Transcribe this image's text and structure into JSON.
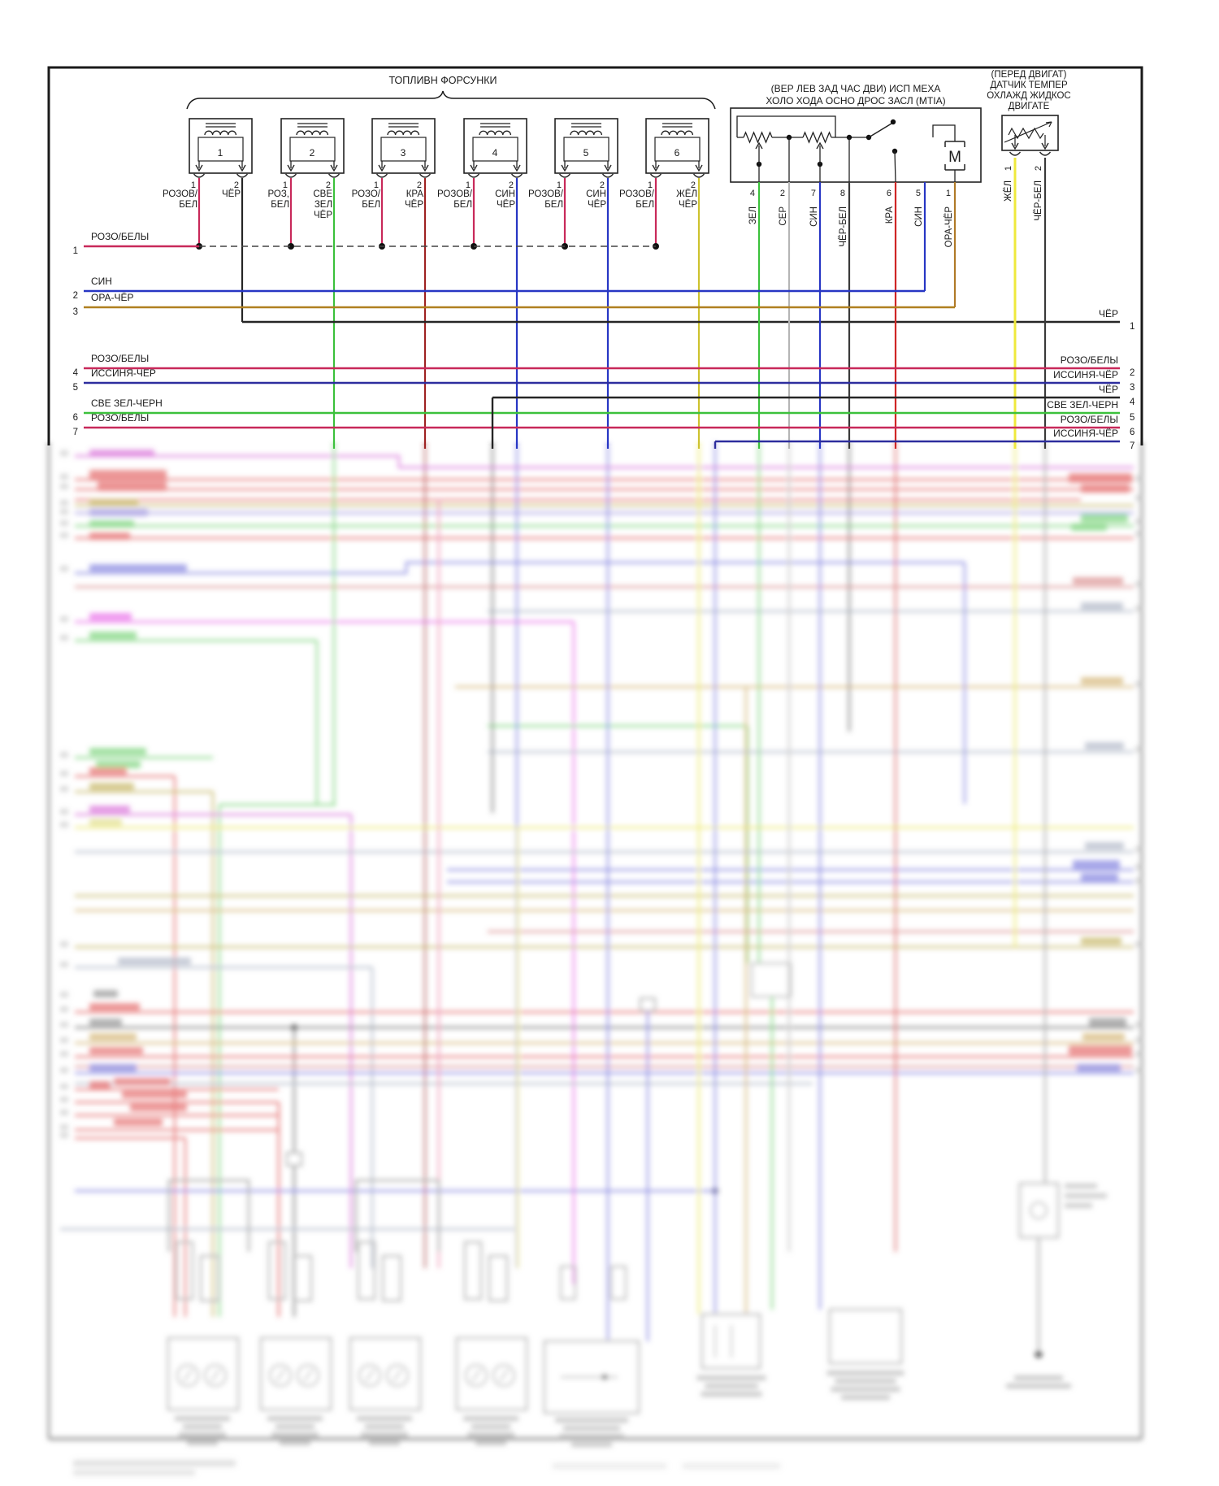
{
  "diagram": {
    "injector_group": {
      "label": "ТОПЛИВН ФОРСУНКИ",
      "injectors": [
        {
          "number": "1",
          "pins": [
            {
              "number": "1",
              "wire_lines": [
                "РОЗОВ/",
                "БЕЛ"
              ],
              "color_key": "pink_white"
            },
            {
              "number": "2",
              "wire_lines": [
                "ЧЁР"
              ],
              "color_key": "black"
            }
          ]
        },
        {
          "number": "2",
          "pins": [
            {
              "number": "1",
              "wire_lines": [
                "РОЗ,",
                "БЕЛ"
              ],
              "color_key": "pink_white"
            },
            {
              "number": "2",
              "wire_lines": [
                "СВЕ",
                "ЗЕЛ",
                "ЧЁР"
              ],
              "color_key": "light_green"
            }
          ]
        },
        {
          "number": "3",
          "pins": [
            {
              "number": "1",
              "wire_lines": [
                "РОЗО/",
                "БЕЛ"
              ],
              "color_key": "pink_white"
            },
            {
              "number": "2",
              "wire_lines": [
                "КРА",
                "ЧЁР"
              ],
              "color_key": "dark_red"
            }
          ]
        },
        {
          "number": "4",
          "pins": [
            {
              "number": "1",
              "wire_lines": [
                "РОЗОВ/",
                "БЕЛ"
              ],
              "color_key": "pink_white"
            },
            {
              "number": "2",
              "wire_lines": [
                "СИН",
                "ЧЁР"
              ],
              "color_key": "blue"
            }
          ]
        },
        {
          "number": "5",
          "pins": [
            {
              "number": "1",
              "wire_lines": [
                "РОЗОВ/",
                "БЕЛ"
              ],
              "color_key": "pink_white"
            },
            {
              "number": "2",
              "wire_lines": [
                "СИН",
                "ЧЁР"
              ],
              "color_key": "blue"
            }
          ]
        },
        {
          "number": "6",
          "pins": [
            {
              "number": "1",
              "wire_lines": [
                "РОЗОВ/",
                "БЕЛ"
              ],
              "color_key": "pink_white"
            },
            {
              "number": "2",
              "wire_lines": [
                "ЖЁЛ",
                "ЧЁР"
              ],
              "color_key": "yellow_olive"
            }
          ]
        }
      ]
    },
    "iac_valve": {
      "title_lines": [
        "(ВЕР ЛЕВ ЗАД ЧАС ДВИ) ИСП МЕХА",
        "ХОЛО ХОДА ОСНО ДРОС ЗАСЛ (MTIA)"
      ],
      "motor_label": "M",
      "pins": [
        {
          "number": "4",
          "wire": "ЗЕЛ",
          "color_key": "green"
        },
        {
          "number": "2",
          "wire": "СЕР",
          "color_key": "gray"
        },
        {
          "number": "7",
          "wire": "СИН",
          "color_key": "blue"
        },
        {
          "number": "8",
          "wire": "ЧЁР-БЕЛ",
          "color_key": "black_white"
        },
        {
          "number": "6",
          "wire": "КРА",
          "color_key": "red"
        },
        {
          "number": "5",
          "wire": "СИН",
          "color_key": "blue"
        },
        {
          "number": "1",
          "wire": "ОРА-ЧЁР",
          "color_key": "orange_black"
        }
      ]
    },
    "coolant_sensor": {
      "title_lines": [
        "(ПЕРЕД ДВИГАТ)",
        "ДАТЧИК ТЕМПЕР",
        "ОХЛАЖД ЖИДКОС",
        "ДВИГАТЕ"
      ],
      "pins": [
        {
          "number": "1",
          "wire": "ЖЁЛ",
          "color_key": "bright_yellow"
        },
        {
          "number": "2",
          "wire": "ЧЁР-БЕЛ",
          "color_key": "black_white"
        }
      ]
    },
    "left_rows": [
      {
        "num": "1",
        "label": "РОЗО/БЕЛЫ",
        "color_key": "pink_white"
      },
      {
        "num": "2",
        "label": "СИН",
        "color_key": "blue"
      },
      {
        "num": "3",
        "label": "ОРА-ЧЁР",
        "color_key": "orange_row"
      },
      {
        "num": "4",
        "label": "РОЗО/БЕЛЫ",
        "color_key": "pink_white"
      },
      {
        "num": "5",
        "label": "ИССИНЯ-ЧЁР",
        "color_key": "dark_blue"
      },
      {
        "num": "6",
        "label": "СВЕ ЗЕЛ-ЧЕРН",
        "color_key": "green"
      },
      {
        "num": "7",
        "label": "РОЗО/БЕЛЫ",
        "color_key": "pink_white"
      }
    ],
    "right_rows": [
      {
        "num": "1",
        "label": "ЧЁР",
        "color_key": "black"
      },
      {
        "num": "2",
        "label": "РОЗО/БЕЛЫ",
        "color_key": "pink_white"
      },
      {
        "num": "3",
        "label": "ИССИНЯ-ЧЁР",
        "color_key": "dark_blue"
      },
      {
        "num": "4",
        "label": "ЧЁР",
        "color_key": "black"
      },
      {
        "num": "5",
        "label": "СВЕ ЗЕЛ-ЧЕРН",
        "color_key": "green"
      },
      {
        "num": "6",
        "label": "РОЗО/БЕЛЫ",
        "color_key": "pink_white"
      },
      {
        "num": "7",
        "label": "ИССИНЯ-ЧЁР",
        "color_key": "dark_blue"
      }
    ],
    "wire_colors": {
      "pink_white": "#c8295a",
      "black": "#262626",
      "light_green": "#3cc13c",
      "dark_red": "#9e2222",
      "blue": "#2736c4",
      "yellow_olive": "#cdc22e",
      "green": "#3cc13c",
      "gray": "#b5b5b5",
      "black_white": "#3a3a3a",
      "red": "#cf2626",
      "orange_black": "#b07a28",
      "orange_row": "#b08020",
      "dark_blue": "#2d2d9e",
      "bright_yellow": "#efe93c"
    }
  }
}
